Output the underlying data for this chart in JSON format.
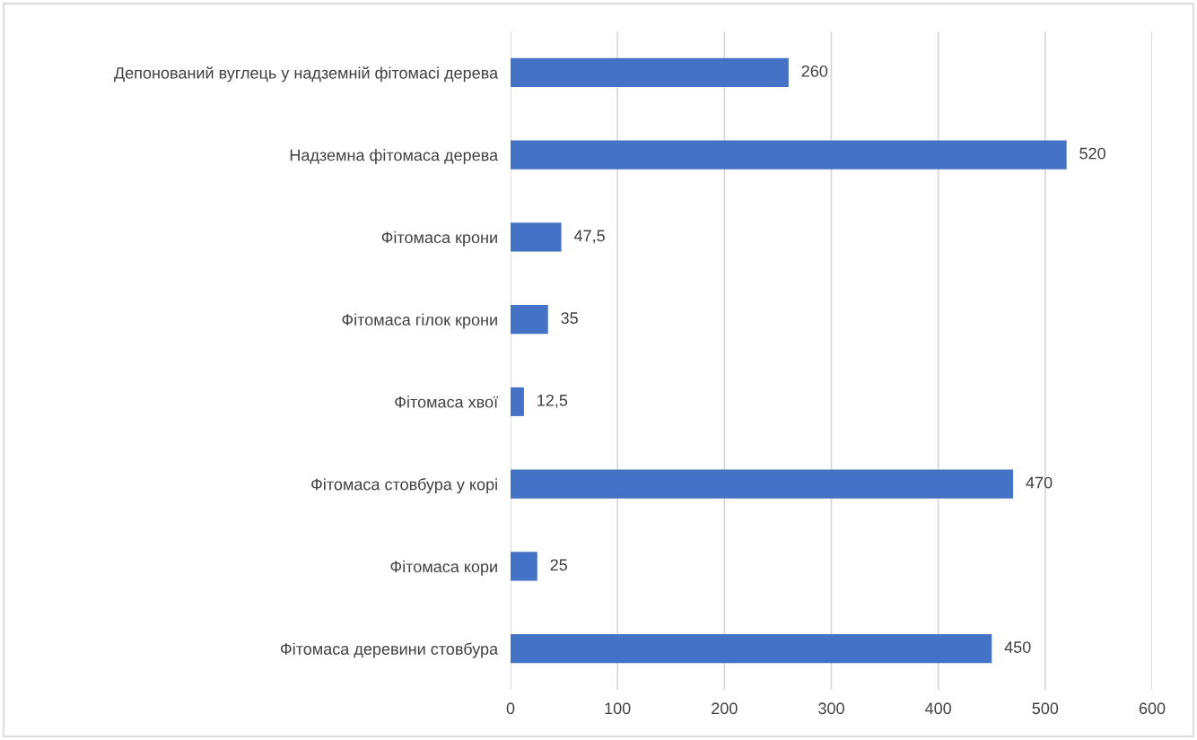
{
  "chart_data": {
    "type": "bar",
    "orientation": "horizontal",
    "categories": [
      "Депонований вуглець у надземній фітомасі дерева",
      "Надземна фітомаса дерева",
      "Фітомаса крони",
      "Фітомаса гілок крони",
      "Фітомаса хвої",
      "Фітомаса стовбура у корі",
      "Фітомаса кори",
      "Фітомаса деревини стовбура"
    ],
    "values": [
      260,
      520,
      47.5,
      35,
      12.5,
      470,
      25,
      450
    ],
    "value_labels": [
      "260",
      "520",
      "47,5",
      "35",
      "12,5",
      "470",
      "25",
      "450"
    ],
    "color": "#4472c4",
    "xlim": [
      0,
      600
    ],
    "xticks": [
      0,
      100,
      200,
      300,
      400,
      500,
      600
    ],
    "grid": "x"
  }
}
